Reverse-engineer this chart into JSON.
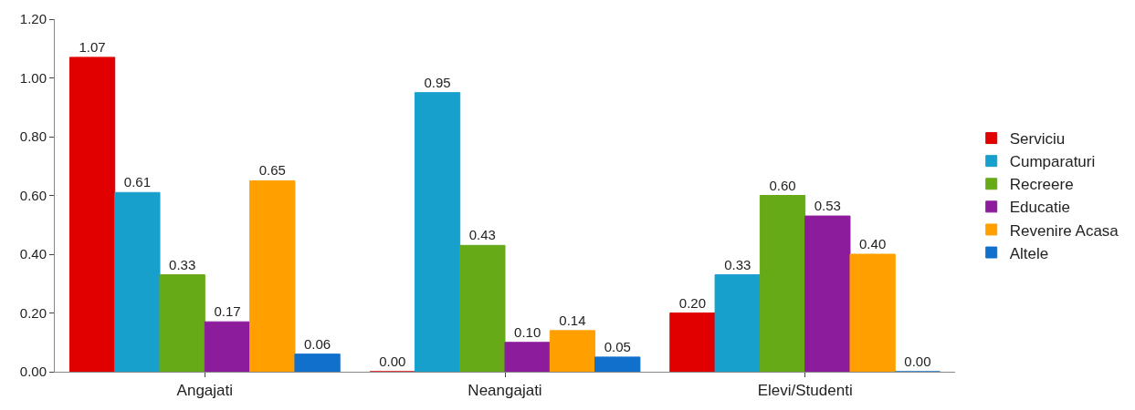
{
  "chart_data": {
    "type": "bar",
    "categories": [
      "Angajati",
      "Neangajati",
      "Elevi/Studenti"
    ],
    "series": [
      {
        "name": "Serviciu",
        "color": "#e00000",
        "values": [
          1.07,
          0.0,
          0.2
        ],
        "value_labels": [
          "1.07",
          "0.00",
          "0.20"
        ]
      },
      {
        "name": "Cumparaturi",
        "color": "#18a0cc",
        "values": [
          0.61,
          0.95,
          0.33
        ],
        "value_labels": [
          "0.61",
          "0.95",
          "0.33"
        ]
      },
      {
        "name": "Recreere",
        "color": "#66aa18",
        "values": [
          0.33,
          0.43,
          0.6
        ],
        "value_labels": [
          "0.33",
          "0.43",
          "0.60"
        ]
      },
      {
        "name": "Educatie",
        "color": "#8c1c9c",
        "values": [
          0.17,
          0.1,
          0.53
        ],
        "value_labels": [
          "0.17",
          "0.10",
          "0.53"
        ]
      },
      {
        "name": "Revenire Acasa",
        "color": "#ffa000",
        "values": [
          0.65,
          0.14,
          0.4
        ],
        "value_labels": [
          "0.65",
          "0.14",
          "0.40"
        ]
      },
      {
        "name": "Altele",
        "color": "#1070cc",
        "values": [
          0.06,
          0.05,
          0.0
        ],
        "value_labels": [
          "0.06",
          "0.05",
          "0.00"
        ]
      }
    ],
    "ylim": [
      0,
      1.2
    ],
    "yticks": [
      {
        "value": 0,
        "label": "0.00"
      },
      {
        "value": 0.2,
        "label": "0.20"
      },
      {
        "value": 0.4,
        "label": "0.40"
      },
      {
        "value": 0.6,
        "label": "0.60"
      },
      {
        "value": 0.8,
        "label": "0.80"
      },
      {
        "value": 1.0,
        "label": "1.00"
      },
      {
        "value": 1.2,
        "label": "1.20"
      }
    ],
    "legend": "right"
  }
}
